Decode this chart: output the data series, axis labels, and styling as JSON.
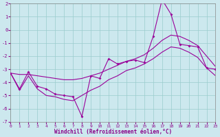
{
  "xlabel": "Windchill (Refroidissement éolien,°C)",
  "xlim": [
    0,
    23
  ],
  "ylim": [
    -7,
    2
  ],
  "xticks": [
    0,
    1,
    2,
    3,
    4,
    5,
    6,
    7,
    8,
    9,
    10,
    11,
    12,
    13,
    14,
    15,
    16,
    17,
    18,
    19,
    20,
    21,
    22,
    23
  ],
  "yticks": [
    -7,
    -6,
    -5,
    -4,
    -3,
    -2,
    -1,
    0,
    1,
    2
  ],
  "bg_color": "#cce8ee",
  "line_color": "#990099",
  "grid_color": "#99cccc",
  "zigzag_x": [
    0,
    1,
    2,
    3,
    4,
    5,
    6,
    7,
    8,
    9,
    10,
    11,
    12,
    13,
    14,
    15,
    16,
    17,
    18,
    19,
    20,
    21,
    22,
    23
  ],
  "zigzag_y": [
    -3.3,
    -4.5,
    -3.2,
    -4.3,
    -4.5,
    -4.9,
    -5.0,
    -5.1,
    -6.6,
    -3.5,
    -3.7,
    -2.2,
    -2.6,
    -2.4,
    -2.3,
    -2.5,
    -0.5,
    2.3,
    1.2,
    -1.1,
    -1.2,
    -1.3,
    -2.9,
    -3.0
  ],
  "upper_x": [
    0,
    1,
    2,
    3,
    4,
    5,
    6,
    7,
    8,
    9,
    10,
    11,
    12,
    13,
    14,
    15,
    16,
    17,
    18,
    19,
    20,
    21,
    22,
    23
  ],
  "upper_y": [
    -3.3,
    -3.4,
    -3.4,
    -3.5,
    -3.6,
    -3.7,
    -3.8,
    -3.8,
    -3.7,
    -3.5,
    -3.3,
    -3.0,
    -2.7,
    -2.4,
    -2.2,
    -1.9,
    -1.4,
    -0.8,
    -0.4,
    -0.5,
    -0.8,
    -1.2,
    -2.0,
    -2.8
  ],
  "lower_x": [
    0,
    1,
    2,
    3,
    4,
    5,
    6,
    7,
    8,
    9,
    10,
    11,
    12,
    13,
    14,
    15,
    16,
    17,
    18,
    19,
    20,
    21,
    22,
    23
  ],
  "lower_y": [
    -3.3,
    -4.6,
    -3.5,
    -4.5,
    -5.0,
    -5.1,
    -5.3,
    -5.4,
    -5.0,
    -4.6,
    -4.3,
    -3.8,
    -3.5,
    -3.1,
    -2.9,
    -2.6,
    -2.2,
    -1.7,
    -1.3,
    -1.4,
    -1.7,
    -2.1,
    -2.9,
    -3.5
  ]
}
